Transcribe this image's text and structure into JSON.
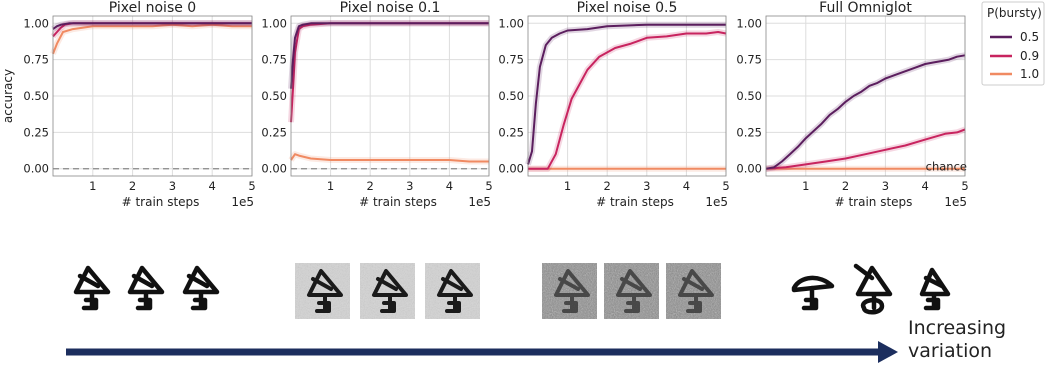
{
  "colors": {
    "p05": "#5b1e5e",
    "p09": "#c8245f",
    "p10": "#f08a62",
    "arrow": "#1c2e5e",
    "chance": "#888888"
  },
  "legend": {
    "title": "P(bursty)",
    "entries": [
      "0.5",
      "0.9",
      "1.0"
    ]
  },
  "caption": {
    "line1": "Increasing",
    "line2": "variation"
  },
  "chart_data": [
    {
      "type": "line",
      "title": "Pixel noise 0",
      "xlabel": "# train steps",
      "ylabel": "accuracy",
      "x_offset_label": "1e5",
      "xlim": [
        0,
        5
      ],
      "ylim": [
        -0.05,
        1.05
      ],
      "xticks": [
        "1",
        "2",
        "3",
        "4",
        "5"
      ],
      "yticks": [
        "0.00",
        "0.25",
        "0.50",
        "0.75",
        "1.00"
      ],
      "chance_line": 0.0,
      "series": [
        {
          "name": "0.5",
          "x": [
            0,
            0.1,
            0.2,
            0.4,
            1,
            2,
            3,
            4,
            5
          ],
          "y": [
            0.96,
            0.98,
            0.99,
            1.0,
            1.0,
            1.0,
            1.0,
            1.0,
            1.0
          ]
        },
        {
          "name": "0.9",
          "x": [
            0,
            0.1,
            0.2,
            0.3,
            0.5,
            1,
            2,
            3,
            4,
            5
          ],
          "y": [
            0.91,
            0.94,
            0.97,
            0.99,
            1.0,
            1.0,
            1.0,
            1.0,
            1.0,
            1.0
          ]
        },
        {
          "name": "1.0",
          "x": [
            0,
            0.1,
            0.25,
            0.5,
            1,
            1.5,
            2,
            2.5,
            3,
            3.5,
            4,
            4.5,
            5
          ],
          "y": [
            0.79,
            0.86,
            0.94,
            0.96,
            0.98,
            0.98,
            0.98,
            0.98,
            0.99,
            0.98,
            0.99,
            0.98,
            0.98
          ]
        }
      ]
    },
    {
      "type": "line",
      "title": "Pixel noise 0.1",
      "xlabel": "# train steps",
      "x_offset_label": "1e5",
      "xlim": [
        0,
        5
      ],
      "ylim": [
        -0.05,
        1.05
      ],
      "xticks": [
        "1",
        "2",
        "3",
        "4",
        "5"
      ],
      "yticks": [
        "0.00",
        "0.25",
        "0.50",
        "0.75",
        "1.00"
      ],
      "chance_line": 0.0,
      "series": [
        {
          "name": "0.5",
          "x": [
            0,
            0.05,
            0.1,
            0.2,
            0.3,
            0.5,
            1,
            2,
            3,
            4,
            5
          ],
          "y": [
            0.55,
            0.75,
            0.9,
            0.98,
            0.99,
            1.0,
            1.0,
            1.0,
            1.0,
            1.0,
            1.0
          ]
        },
        {
          "name": "0.9",
          "x": [
            0,
            0.05,
            0.1,
            0.2,
            0.3,
            0.5,
            1,
            2,
            3,
            4,
            5
          ],
          "y": [
            0.32,
            0.55,
            0.8,
            0.96,
            0.98,
            0.99,
            1.0,
            1.0,
            1.0,
            1.0,
            1.0
          ]
        },
        {
          "name": "1.0",
          "x": [
            0,
            0.1,
            0.2,
            0.5,
            1,
            1.5,
            2,
            2.5,
            3,
            3.5,
            4,
            4.5,
            5
          ],
          "y": [
            0.06,
            0.1,
            0.09,
            0.07,
            0.06,
            0.06,
            0.06,
            0.06,
            0.06,
            0.06,
            0.06,
            0.05,
            0.05
          ]
        }
      ]
    },
    {
      "type": "line",
      "title": "Pixel noise 0.5",
      "xlabel": "# train steps",
      "x_offset_label": "1e5",
      "xlim": [
        0,
        5
      ],
      "ylim": [
        -0.05,
        1.05
      ],
      "xticks": [
        "1",
        "2",
        "3",
        "4",
        "5"
      ],
      "yticks": [
        "0.00",
        "0.25",
        "0.50",
        "0.75",
        "1.00"
      ],
      "series": [
        {
          "name": "0.5",
          "x": [
            0,
            0.1,
            0.2,
            0.3,
            0.45,
            0.6,
            0.8,
            1,
            1.5,
            2,
            3,
            4,
            5
          ],
          "y": [
            0.03,
            0.12,
            0.45,
            0.7,
            0.85,
            0.9,
            0.93,
            0.95,
            0.96,
            0.98,
            0.99,
            0.99,
            0.99
          ]
        },
        {
          "name": "0.9",
          "x": [
            0,
            0.5,
            0.7,
            0.9,
            1.1,
            1.3,
            1.5,
            1.8,
            2.2,
            2.6,
            3,
            3.5,
            4,
            4.5,
            4.8,
            5
          ],
          "y": [
            0.0,
            0.0,
            0.1,
            0.3,
            0.48,
            0.58,
            0.68,
            0.77,
            0.83,
            0.86,
            0.9,
            0.91,
            0.93,
            0.93,
            0.94,
            0.93
          ]
        },
        {
          "name": "1.0",
          "x": [
            0,
            5
          ],
          "y": [
            0.0,
            0.0
          ]
        }
      ]
    },
    {
      "type": "line",
      "title": "Full Omniglot",
      "xlabel": "# train steps",
      "x_offset_label": "1e5",
      "xlim": [
        0,
        5
      ],
      "ylim": [
        -0.05,
        1.05
      ],
      "xticks": [
        "1",
        "2",
        "3",
        "4",
        "5"
      ],
      "yticks": [
        "0.00",
        "0.25",
        "0.50",
        "0.75",
        "1.00"
      ],
      "chance_label": "chance",
      "series": [
        {
          "name": "0.5",
          "x": [
            0,
            0.2,
            0.4,
            0.6,
            0.8,
            1,
            1.2,
            1.4,
            1.6,
            1.8,
            2,
            2.2,
            2.4,
            2.6,
            2.8,
            3,
            3.2,
            3.4,
            3.6,
            3.8,
            4,
            4.2,
            4.4,
            4.6,
            4.8,
            5
          ],
          "y": [
            0.0,
            0.01,
            0.05,
            0.1,
            0.15,
            0.21,
            0.26,
            0.31,
            0.37,
            0.41,
            0.46,
            0.5,
            0.53,
            0.57,
            0.59,
            0.62,
            0.64,
            0.66,
            0.68,
            0.7,
            0.72,
            0.73,
            0.74,
            0.75,
            0.77,
            0.78
          ]
        },
        {
          "name": "0.9",
          "x": [
            0,
            0.5,
            1,
            1.5,
            2,
            2.5,
            3,
            3.5,
            4,
            4.5,
            4.8,
            5
          ],
          "y": [
            0.0,
            0.01,
            0.03,
            0.05,
            0.07,
            0.1,
            0.13,
            0.16,
            0.2,
            0.24,
            0.25,
            0.27
          ]
        },
        {
          "name": "1.0",
          "x": [
            0,
            5
          ],
          "y": [
            0.0,
            0.0
          ]
        }
      ]
    }
  ]
}
